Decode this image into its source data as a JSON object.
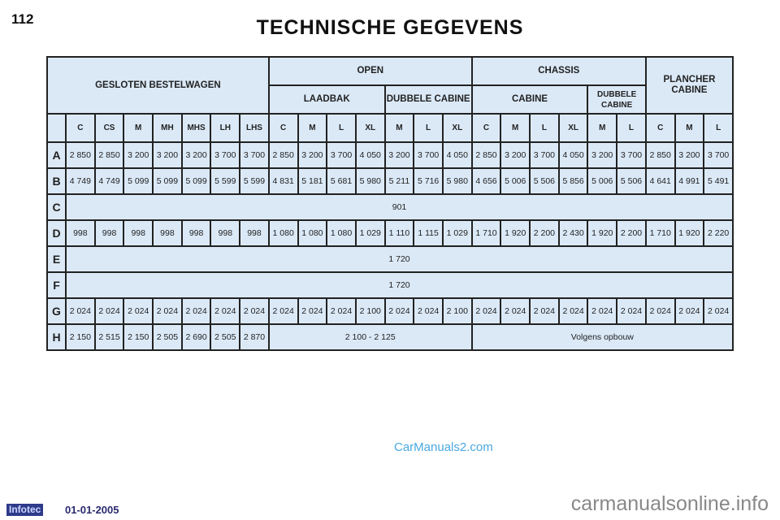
{
  "page_number": "112",
  "title": "TECHNISCHE GEGEVENS",
  "table": {
    "headers": {
      "gesloten": "GESLOTEN BESTELWAGEN",
      "open": "OPEN",
      "chassis": "CHASSIS",
      "plancher": "PLANCHER CABINE",
      "laadbak": "LAADBAK",
      "dubbele_cabine_open": "DUBBELE CABINE",
      "cabine": "CABINE",
      "dubbele_cabine_chassis": "DUBBELE CABINE"
    },
    "codes": [
      "C",
      "CS",
      "M",
      "MH",
      "MHS",
      "LH",
      "LHS",
      "C",
      "M",
      "L",
      "XL",
      "M",
      "L",
      "XL",
      "C",
      "M",
      "L",
      "XL",
      "M",
      "L",
      "C",
      "M",
      "L"
    ],
    "rows": [
      {
        "label": "A",
        "values": [
          "2 850",
          "2 850",
          "3 200",
          "3 200",
          "3 200",
          "3 700",
          "3 700",
          "2 850",
          "3 200",
          "3 700",
          "4 050",
          "3 200",
          "3 700",
          "4 050",
          "2 850",
          "3 200",
          "3 700",
          "4 050",
          "3 200",
          "3 700",
          "2 850",
          "3 200",
          "3 700"
        ]
      },
      {
        "label": "B",
        "values": [
          "4 749",
          "4 749",
          "5 099",
          "5 099",
          "5 099",
          "5 599",
          "5 599",
          "4 831",
          "5 181",
          "5 681",
          "5 980",
          "5 211",
          "5 716",
          "5 980",
          "4 656",
          "5 006",
          "5 506",
          "5 856",
          "5 006",
          "5 506",
          "4 641",
          "4 991",
          "5 491"
        ]
      },
      {
        "label": "C",
        "span": "901"
      },
      {
        "label": "D",
        "values": [
          "998",
          "998",
          "998",
          "998",
          "998",
          "998",
          "998",
          "1 080",
          "1 080",
          "1 080",
          "1 029",
          "1 110",
          "1 115",
          "1 029",
          "1 710",
          "1 920",
          "2 200",
          "2 430",
          "1 920",
          "2 200",
          "1 710",
          "1 920",
          "2 220"
        ]
      },
      {
        "label": "E",
        "span": "1 720"
      },
      {
        "label": "F",
        "span": "1 720"
      },
      {
        "label": "G",
        "values": [
          "2 024",
          "2 024",
          "2 024",
          "2 024",
          "2 024",
          "2 024",
          "2 024",
          "2 024",
          "2 024",
          "2 024",
          "2 100",
          "2 024",
          "2 024",
          "2 100",
          "2 024",
          "2 024",
          "2 024",
          "2 024",
          "2 024",
          "2 024",
          "2 024",
          "2 024",
          "2 024"
        ]
      },
      {
        "label": "H",
        "values": [
          "2 150",
          "2 515",
          "2 150",
          "2 505",
          "2 690",
          "2 505",
          "2 870"
        ],
        "open_span": "2 100 - 2 125",
        "chassis_span": "Volgens opbouw"
      }
    ]
  },
  "watermark": "CarManuals2.com",
  "footer": {
    "logo": "Infotec",
    "date": "01-01-2005",
    "site": "carmanualsonline.info"
  }
}
